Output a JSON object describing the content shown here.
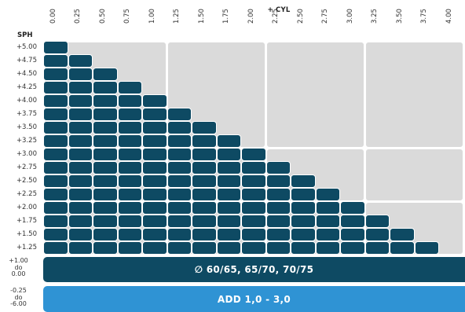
{
  "header": {
    "cyl_title": "+ CYL",
    "sph_title": "SPH"
  },
  "columns": [
    "0.00",
    "0.25",
    "0.50",
    "0.75",
    "1.00",
    "1.25",
    "1.50",
    "1.75",
    "2.00",
    "2.25",
    "2.50",
    "2.75",
    "3.00",
    "3.25",
    "3.50",
    "3.75",
    "4.00"
  ],
  "rows": [
    "+5.00",
    "+4.75",
    "+4.50",
    "+4.25",
    "+4.00",
    "+3.75",
    "+3.50",
    "+3.25",
    "+3.00",
    "+2.75",
    "+2.50",
    "+2.25",
    "+2.00",
    "+1.75",
    "+1.50",
    "+1.25"
  ],
  "availability_by_row": [
    1,
    2,
    3,
    4,
    5,
    6,
    7,
    8,
    9,
    10,
    11,
    12,
    13,
    14,
    15,
    16
  ],
  "bands": [
    {
      "range_top": "+1.00",
      "range_mid": "do",
      "range_bottom": "0.00",
      "text": "∅ 60/65, 65/70, 70/75"
    },
    {
      "range_top": "-0.25",
      "range_mid": "do",
      "range_bottom": "-6.00",
      "text": "ADD 1,0 - 3,0"
    }
  ],
  "colors": {
    "available": "#0e4a63",
    "unavailable": "#dadada",
    "add_band": "#2f93d4"
  }
}
